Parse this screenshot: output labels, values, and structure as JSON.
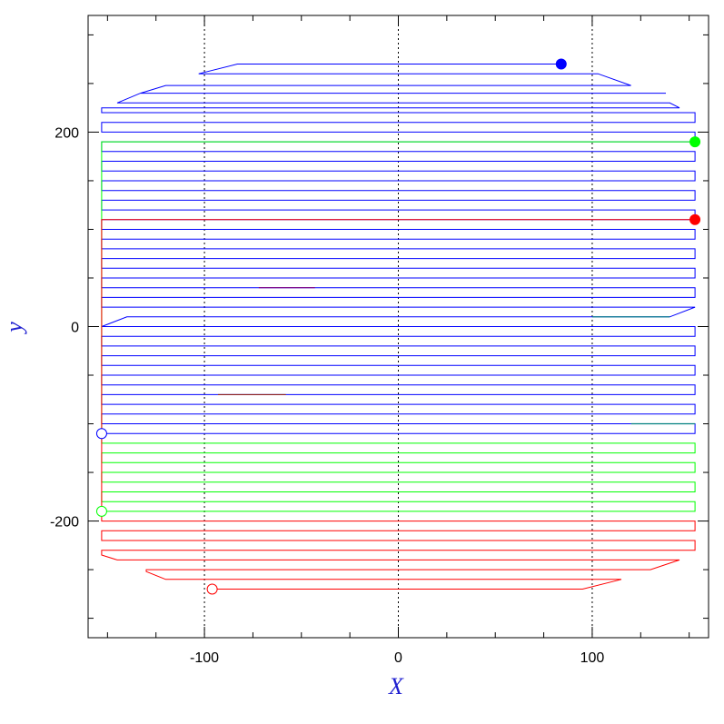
{
  "chart_data": {
    "type": "line",
    "title": "",
    "xlabel": "X",
    "ylabel": "y",
    "xlim": [
      -160,
      160
    ],
    "ylim": [
      -320,
      320
    ],
    "grid": "dotted vertical lines at x = -100, 0, 100",
    "x_ticks": [
      {
        "value": -100,
        "label": "-100"
      },
      {
        "value": 0,
        "label": "0"
      },
      {
        "value": 100,
        "label": "100"
      }
    ],
    "y_ticks": [
      {
        "value": -200,
        "label": "-200"
      },
      {
        "value": 0,
        "label": "0"
      },
      {
        "value": 200,
        "label": "200"
      }
    ],
    "gridlines_x": [
      -100,
      0,
      100
    ],
    "colors": {
      "frame": "#000000",
      "axis_label": "#1f1fd0",
      "blue": "#0000ff",
      "green": "#00ff00",
      "red": "#ff0000"
    },
    "series": [
      {
        "color": "blue",
        "points": [
          [
            84,
            270
          ],
          [
            -83,
            270
          ],
          [
            -103,
            260
          ],
          [
            103,
            260
          ],
          [
            120,
            248
          ],
          [
            -120,
            248
          ],
          [
            -133,
            240
          ],
          [
            138,
            240
          ],
          [
            -133,
            240
          ],
          [
            -145,
            230
          ],
          [
            140,
            230
          ],
          [
            145,
            225
          ],
          [
            -153,
            225
          ],
          [
            -153,
            220
          ],
          [
            153,
            220
          ],
          [
            153,
            210
          ],
          [
            -153,
            210
          ],
          [
            -153,
            200
          ],
          [
            153,
            200
          ],
          [
            153,
            190
          ],
          [
            -153,
            190
          ],
          [
            -153,
            180
          ],
          [
            153,
            180
          ],
          [
            153,
            170
          ],
          [
            -153,
            170
          ],
          [
            -153,
            160
          ],
          [
            153,
            160
          ],
          [
            153,
            150
          ],
          [
            -153,
            150
          ],
          [
            -153,
            140
          ],
          [
            153,
            140
          ],
          [
            153,
            130
          ],
          [
            -153,
            130
          ],
          [
            -153,
            120
          ],
          [
            153,
            120
          ],
          [
            153,
            110
          ],
          [
            -153,
            110
          ],
          [
            -153,
            100
          ],
          [
            153,
            100
          ],
          [
            153,
            90
          ],
          [
            -153,
            90
          ],
          [
            -153,
            80
          ],
          [
            153,
            80
          ],
          [
            153,
            70
          ],
          [
            -153,
            70
          ],
          [
            -153,
            60
          ],
          [
            153,
            60
          ],
          [
            153,
            50
          ],
          [
            -153,
            50
          ],
          [
            -153,
            40
          ],
          [
            153,
            40
          ],
          [
            153,
            30
          ],
          [
            -153,
            30
          ],
          [
            -153,
            20
          ],
          [
            153,
            20
          ],
          [
            140,
            10
          ],
          [
            -140,
            10
          ],
          [
            -153,
            0
          ],
          [
            153,
            0
          ],
          [
            153,
            -10
          ],
          [
            -153,
            -10
          ],
          [
            -153,
            -20
          ],
          [
            153,
            -20
          ],
          [
            153,
            -30
          ],
          [
            -153,
            -30
          ],
          [
            -153,
            -40
          ],
          [
            153,
            -40
          ],
          [
            153,
            -50
          ],
          [
            -153,
            -50
          ],
          [
            -153,
            -60
          ],
          [
            153,
            -60
          ],
          [
            153,
            -70
          ],
          [
            -153,
            -70
          ],
          [
            -153,
            -80
          ],
          [
            153,
            -80
          ],
          [
            153,
            -90
          ],
          [
            -153,
            -90
          ],
          [
            -153,
            -100
          ],
          [
            153,
            -100
          ],
          [
            153,
            -110
          ],
          [
            -153,
            -110
          ]
        ]
      },
      {
        "color": "green",
        "points": [
          [
            153,
            190
          ],
          [
            -153,
            190
          ],
          [
            -153,
            -120
          ],
          [
            153,
            -120
          ],
          [
            153,
            -130
          ],
          [
            -153,
            -130
          ],
          [
            -153,
            -140
          ],
          [
            153,
            -140
          ],
          [
            153,
            -150
          ],
          [
            -153,
            -150
          ],
          [
            -153,
            -160
          ],
          [
            153,
            -160
          ],
          [
            153,
            -170
          ],
          [
            -153,
            -170
          ],
          [
            -153,
            -180
          ],
          [
            153,
            -180
          ],
          [
            153,
            -190
          ],
          [
            -153,
            -190
          ]
        ]
      },
      {
        "color": "red",
        "points": [
          [
            153,
            110
          ],
          [
            -153,
            110
          ],
          [
            -153,
            -200
          ],
          [
            153,
            -200
          ],
          [
            153,
            -210
          ],
          [
            -153,
            -210
          ],
          [
            -153,
            -220
          ],
          [
            153,
            -220
          ],
          [
            153,
            -230
          ],
          [
            -153,
            -230
          ],
          [
            -153,
            -235
          ],
          [
            -145,
            -240
          ],
          [
            145,
            -240
          ],
          [
            130,
            -250
          ],
          [
            -130,
            -250
          ],
          [
            -130,
            -252
          ],
          [
            -120,
            -260
          ],
          [
            115,
            -260
          ],
          [
            95,
            -270
          ],
          [
            -96,
            -270
          ]
        ]
      }
    ],
    "markers": [
      {
        "x": 84,
        "y": 270,
        "color": "blue",
        "filled": true
      },
      {
        "x": 153,
        "y": 190,
        "color": "green",
        "filled": true
      },
      {
        "x": 153,
        "y": 110,
        "color": "red",
        "filled": true
      },
      {
        "x": -153,
        "y": -110,
        "color": "blue",
        "filled": false
      },
      {
        "x": -153,
        "y": -190,
        "color": "green",
        "filled": false
      },
      {
        "x": -96,
        "y": -270,
        "color": "red",
        "filled": false
      }
    ],
    "short_segments": [
      {
        "x1": -72,
        "x2": -43,
        "y": 40,
        "color": "purple"
      },
      {
        "x1": -93,
        "x2": -58,
        "y": -70,
        "color": "brown"
      },
      {
        "x1": 100,
        "x2": 140,
        "y": 10,
        "color": "teal"
      },
      {
        "x1": 120,
        "x2": 153,
        "y": -100,
        "color": "teal"
      }
    ]
  }
}
